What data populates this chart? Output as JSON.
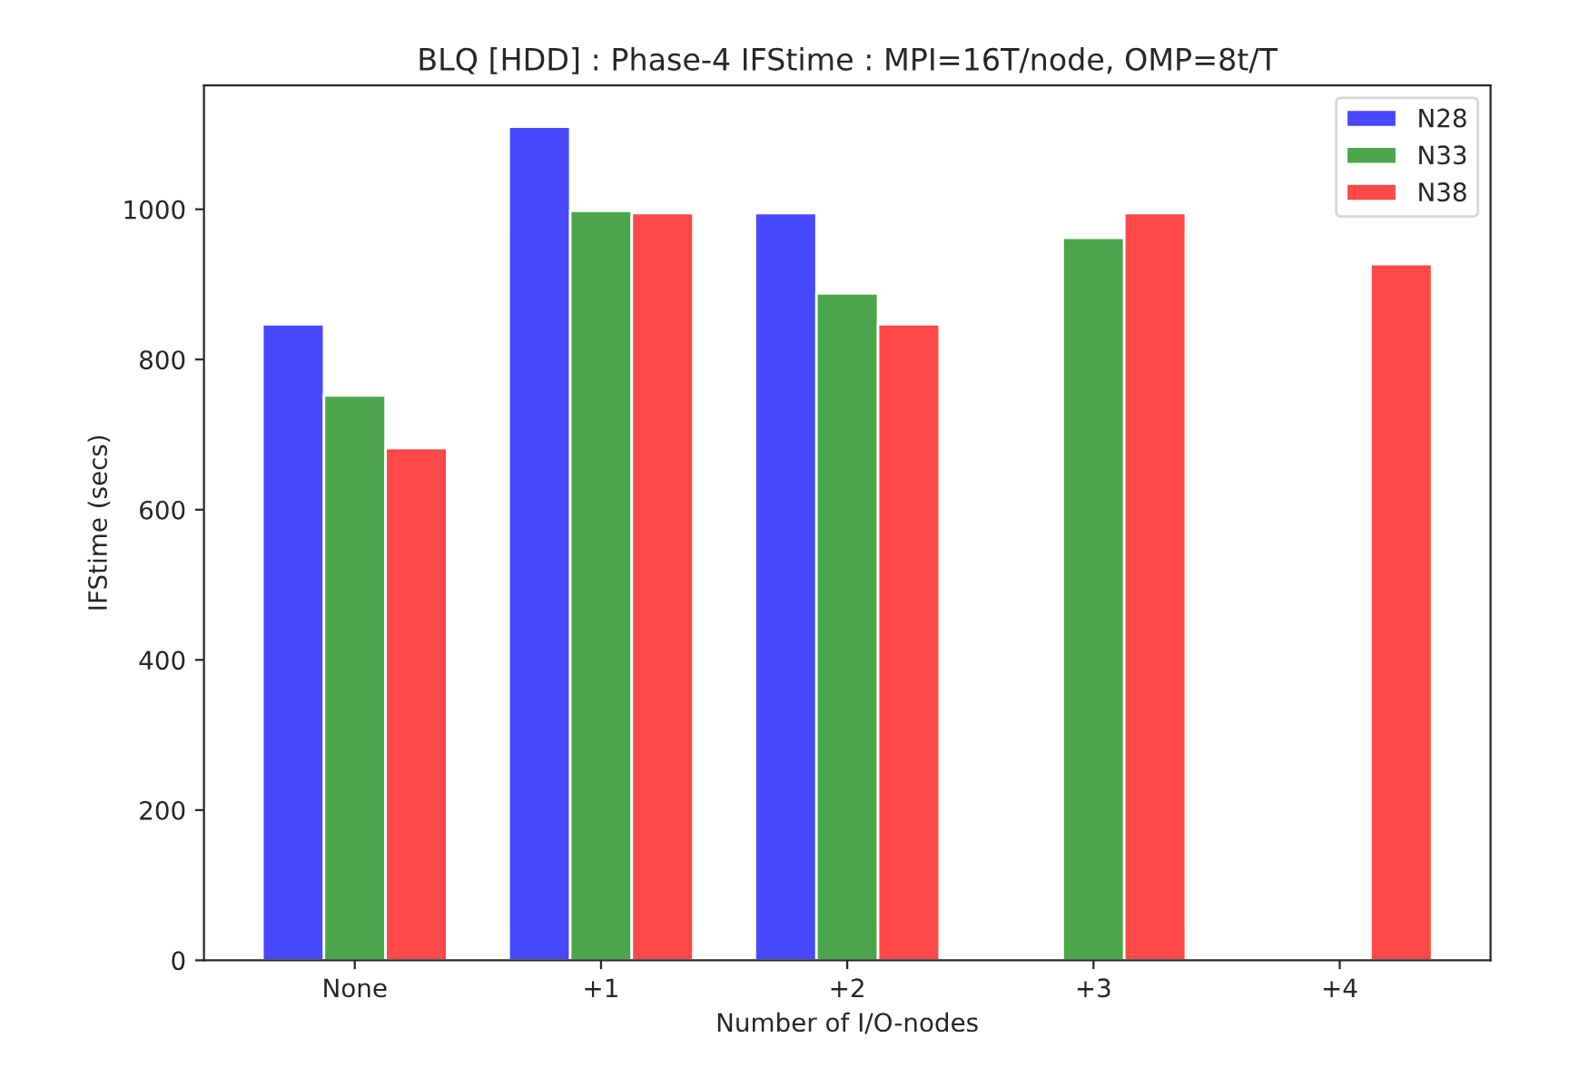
{
  "chart_data": {
    "type": "bar",
    "title": "BLQ [HDD] : Phase-4 IFStime : MPI=16T/node, OMP=8t/T",
    "xlabel": "Number of I/O-nodes",
    "ylabel": "IFStime (secs)",
    "categories": [
      "None",
      "+1",
      "+2",
      "+3",
      "+4"
    ],
    "series": [
      {
        "name": "N28",
        "color": "#4848ff",
        "values": [
          847,
          1110,
          995,
          null,
          null
        ]
      },
      {
        "name": "N33",
        "color": "#4ba64b",
        "values": [
          752,
          998,
          888,
          962,
          null
        ]
      },
      {
        "name": "N38",
        "color": "#ff4848",
        "values": [
          682,
          995,
          847,
          995,
          927
        ]
      }
    ],
    "ylim": [
      0,
      1165
    ],
    "yticks": [
      0,
      200,
      400,
      600,
      800,
      1000
    ],
    "grid": false,
    "legend": "top right"
  }
}
